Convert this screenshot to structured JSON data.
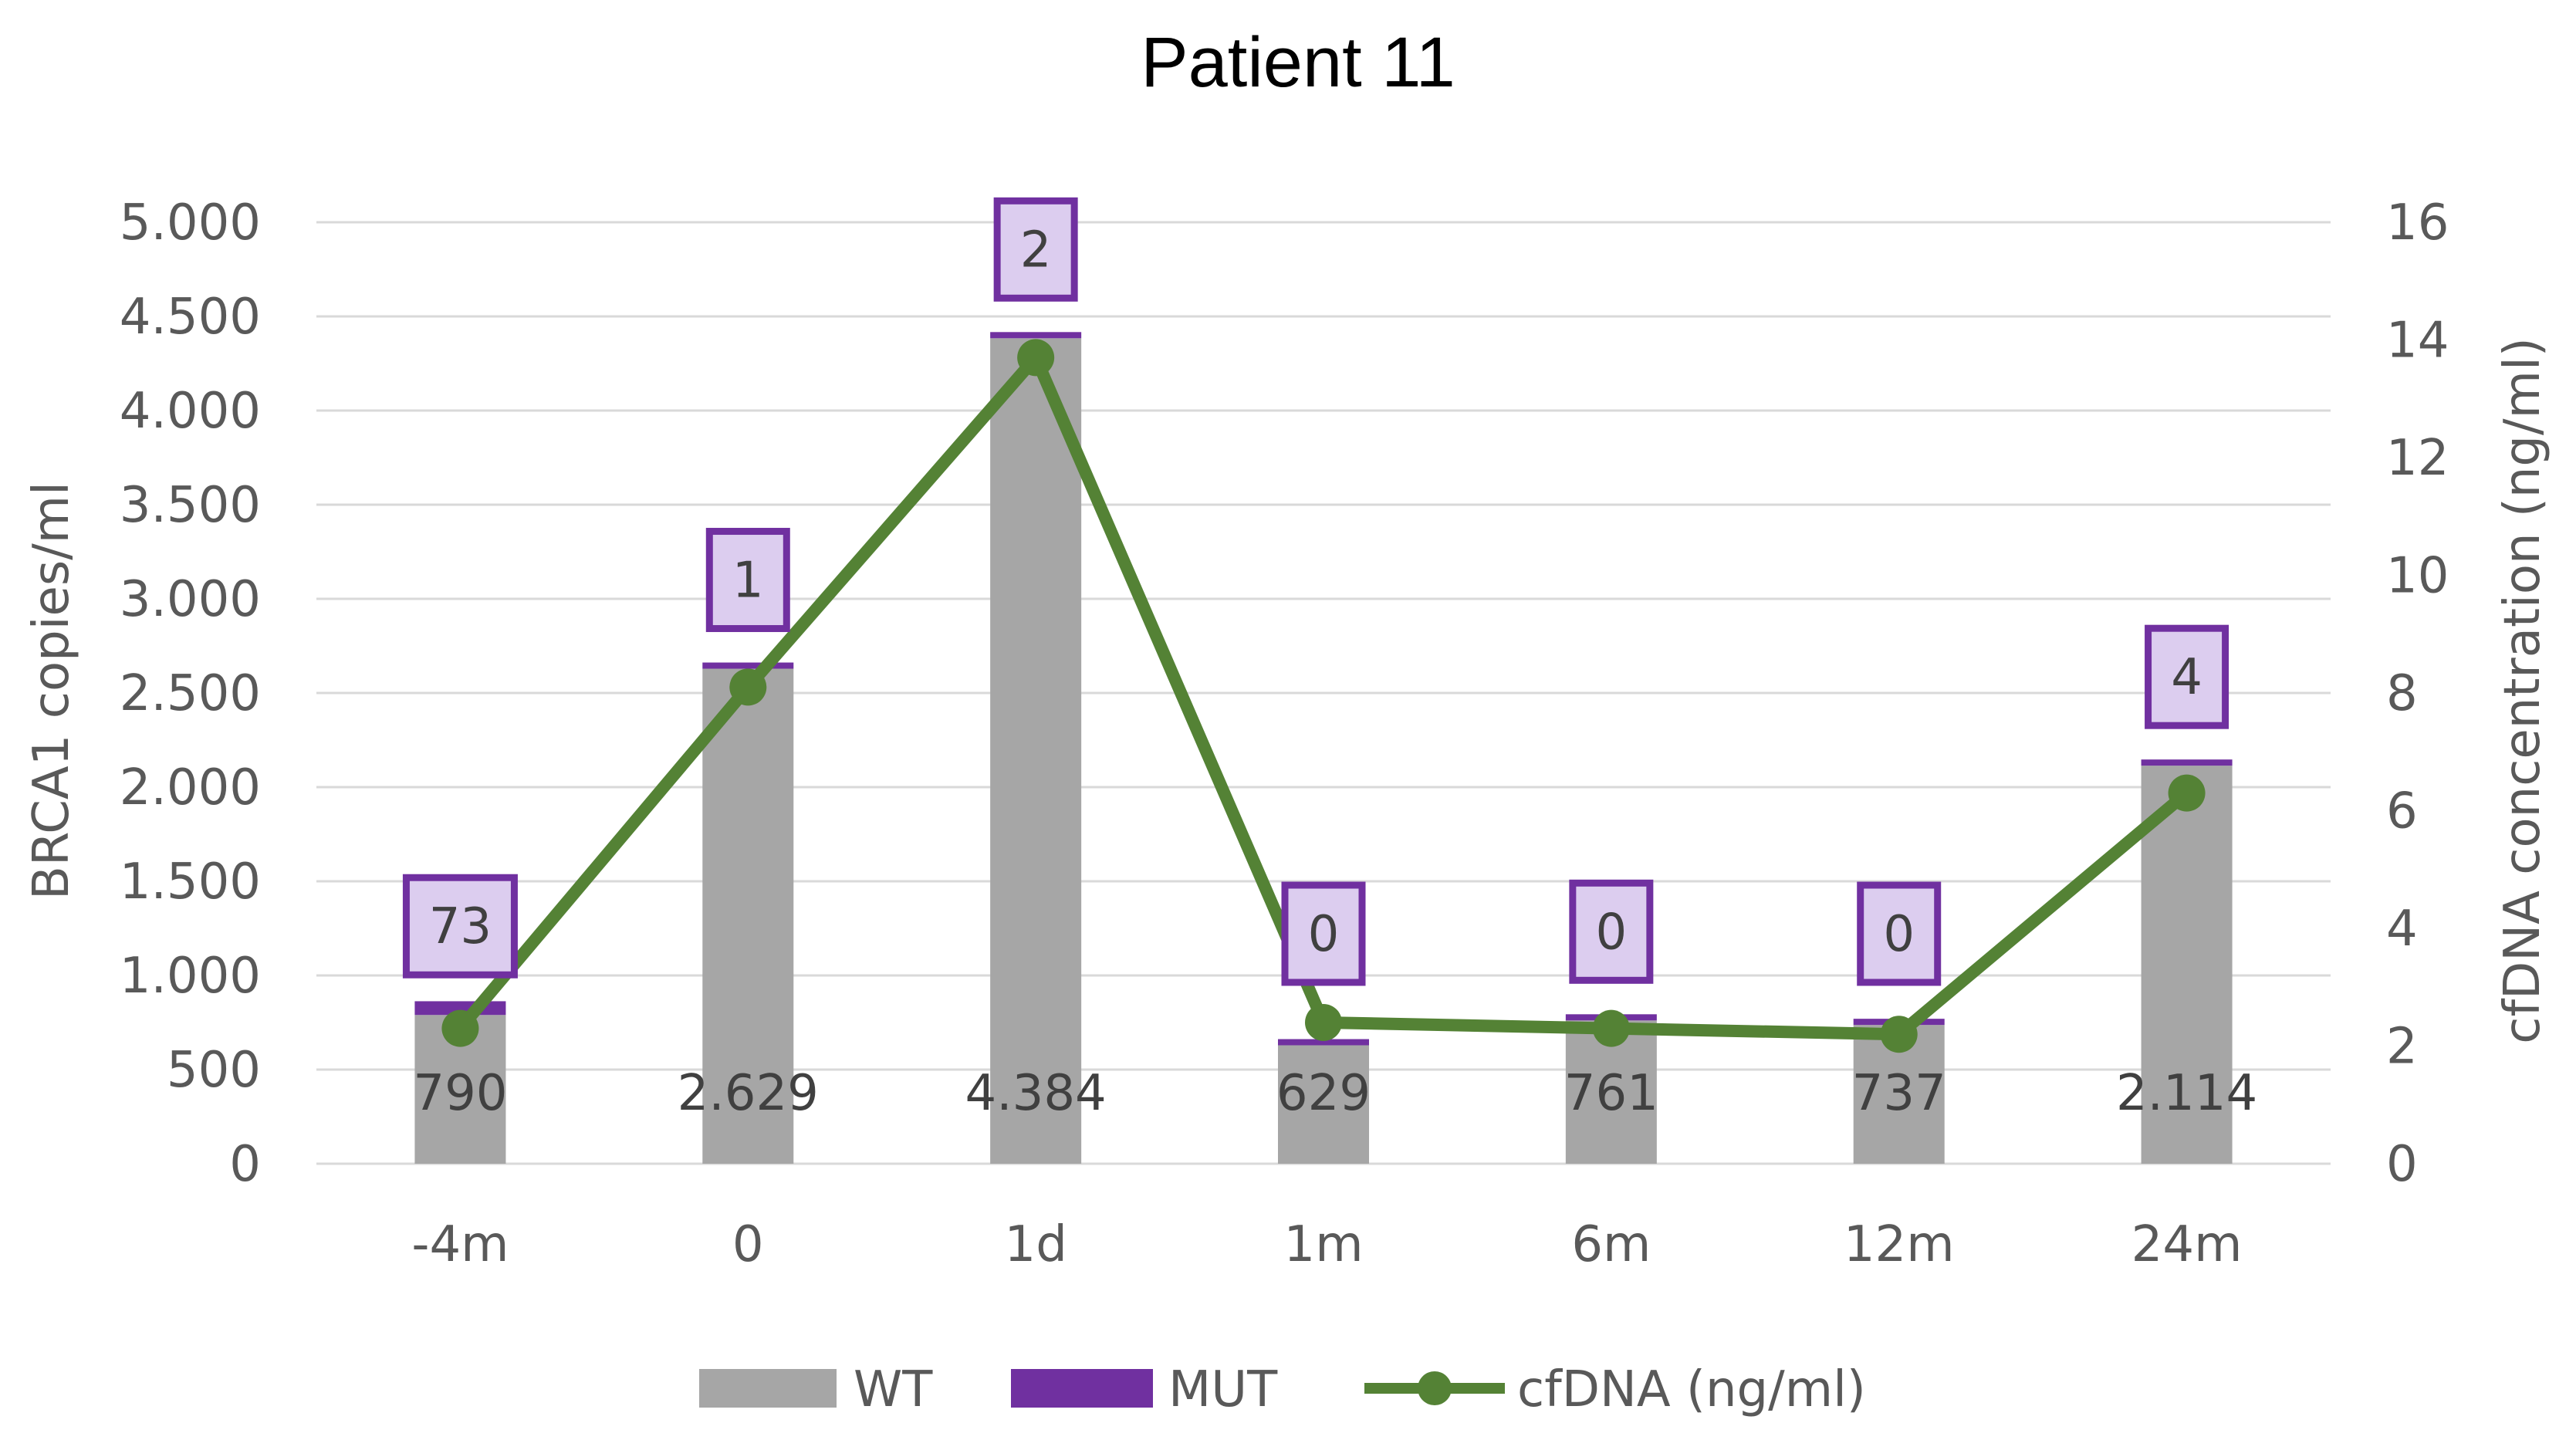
{
  "chart_data": {
    "type": "bar",
    "title": "Patient 11",
    "categories": [
      "-4m",
      "0",
      "1d",
      "1m",
      "6m",
      "12m",
      "24m"
    ],
    "series": [
      {
        "name": "WT",
        "kind": "bar",
        "axis": "left",
        "values": [
          790,
          2629,
          4384,
          629,
          761,
          737,
          2114
        ]
      },
      {
        "name": "MUT",
        "kind": "bar-stacked",
        "axis": "left",
        "values": [
          73,
          1,
          2,
          0,
          0,
          0,
          4
        ]
      },
      {
        "name": "cfDNA (ng/ml)",
        "kind": "line",
        "axis": "right",
        "values": [
          2.3,
          8.1,
          13.7,
          2.4,
          2.3,
          2.2,
          6.3
        ]
      }
    ],
    "wt_labels": [
      "790",
      "2.629",
      "4.384",
      "629",
      "761",
      "737",
      "2.114"
    ],
    "mut_labels": [
      "73",
      "1",
      "2",
      "0",
      "0",
      "0",
      "4"
    ],
    "ylabel": "BRCA1 copies/ml",
    "y2label": "cfDNA concentration (ng/ml)",
    "ylim": [
      0,
      5000
    ],
    "y2lim": [
      0,
      16
    ],
    "yticks": [
      0,
      500,
      1000,
      1500,
      2000,
      2500,
      3000,
      3500,
      4000,
      4500,
      5000
    ],
    "ytick_labels": [
      "0",
      "500",
      "1.000",
      "1.500",
      "2.000",
      "2.500",
      "3.000",
      "3.500",
      "4.000",
      "4.500",
      "5.000"
    ],
    "y2ticks": [
      0,
      2,
      4,
      6,
      8,
      10,
      12,
      14,
      16
    ],
    "y2tick_labels": [
      "0",
      "2",
      "4",
      "6",
      "8",
      "10",
      "12",
      "14",
      "16"
    ],
    "grid": true,
    "legend_position": "bottom-center",
    "colors": {
      "wt": "#a6a6a6",
      "mut": "#7030a0",
      "mut_label_bg": "#dccdef",
      "line": "#548235",
      "grid": "#d9d9d9",
      "tick": "#595959"
    }
  }
}
